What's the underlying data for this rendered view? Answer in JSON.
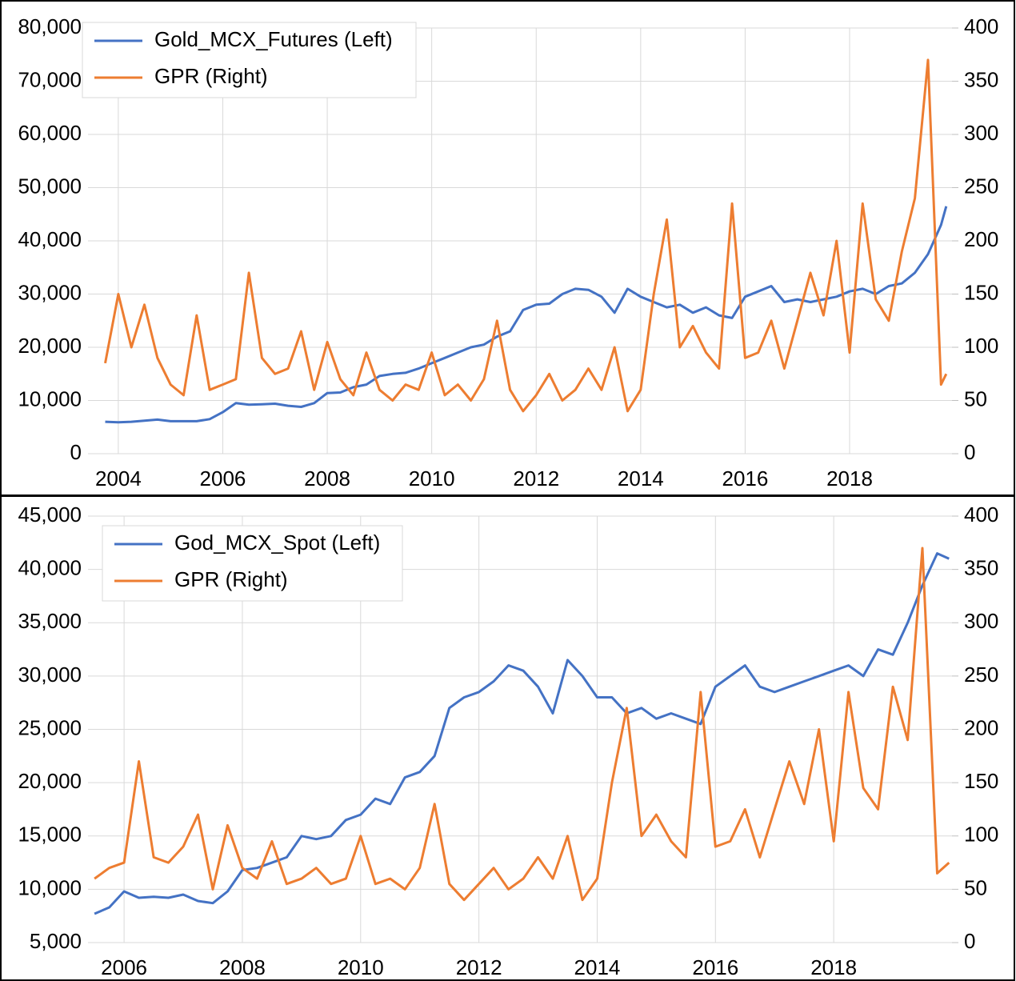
{
  "chart_data": [
    {
      "type": "line",
      "x": [
        2003.75,
        2004,
        2004.25,
        2004.5,
        2004.75,
        2005,
        2005.25,
        2005.5,
        2005.75,
        2006,
        2006.25,
        2006.5,
        2006.75,
        2007,
        2007.25,
        2007.5,
        2007.75,
        2008,
        2008.25,
        2008.5,
        2008.75,
        2009,
        2009.25,
        2009.5,
        2009.75,
        2010,
        2010.25,
        2010.5,
        2010.75,
        2011,
        2011.25,
        2011.5,
        2011.75,
        2012,
        2012.25,
        2012.5,
        2012.75,
        2013,
        2013.25,
        2013.5,
        2013.75,
        2014,
        2014.25,
        2014.5,
        2014.75,
        2015,
        2015.25,
        2015.5,
        2015.75,
        2016,
        2016.25,
        2016.5,
        2016.75,
        2017,
        2017.25,
        2017.5,
        2017.75,
        2018,
        2018.25,
        2018.5,
        2018.75,
        2019,
        2019.25,
        2019.5,
        2019.75,
        2019.85
      ],
      "series": [
        {
          "name": "Gold_MCX_Futures (Left)",
          "color": "#4472c4",
          "axis": "y",
          "values": [
            6000,
            5900,
            6000,
            6200,
            6400,
            6100,
            6100,
            6100,
            6500,
            7800,
            9500,
            9200,
            9300,
            9400,
            9000,
            8800,
            9500,
            11400,
            11500,
            12500,
            13000,
            14600,
            15000,
            15200,
            16000,
            17000,
            18000,
            19000,
            20000,
            20500,
            22000,
            23000,
            27000,
            28000,
            28200,
            30000,
            31000,
            30800,
            29500,
            26500,
            31000,
            29500,
            28500,
            27500,
            28000,
            26500,
            27500,
            26000,
            25500,
            29500,
            30500,
            31500,
            28500,
            29000,
            28500,
            29000,
            29500,
            30500,
            31000,
            30000,
            31500,
            32000,
            34000,
            37500,
            43000,
            46500
          ]
        },
        {
          "name": "GPR (Right)",
          "color": "#ed7d31",
          "axis": "y2",
          "values": [
            85,
            150,
            100,
            140,
            90,
            65,
            55,
            130,
            60,
            65,
            70,
            170,
            90,
            75,
            80,
            115,
            60,
            105,
            70,
            55,
            95,
            60,
            50,
            65,
            60,
            95,
            55,
            65,
            50,
            70,
            125,
            60,
            40,
            55,
            75,
            50,
            60,
            80,
            60,
            100,
            40,
            60,
            150,
            220,
            100,
            120,
            95,
            80,
            235,
            90,
            95,
            125,
            80,
            125,
            170,
            130,
            200,
            95,
            235,
            145,
            125,
            190,
            240,
            370,
            65,
            75
          ]
        }
      ],
      "xlim": [
        2003.42,
        2019.96
      ],
      "xticks": [
        2004,
        2006,
        2008,
        2010,
        2012,
        2014,
        2016,
        2018
      ],
      "ylim": [
        0,
        80000
      ],
      "yticks": [
        0,
        {
          "value": 10000,
          "label": "10,000"
        },
        {
          "value": 20000,
          "label": "20,000"
        },
        {
          "value": 30000,
          "label": "30,000"
        },
        {
          "value": 40000,
          "label": "40,000"
        },
        {
          "value": 50000,
          "label": "50,000"
        },
        {
          "value": 60000,
          "label": "60,000"
        },
        {
          "value": 70000,
          "label": "70,000"
        },
        {
          "value": 80000,
          "label": "80,000"
        }
      ],
      "y2lim": [
        0,
        400
      ],
      "y2ticks": [
        0,
        50,
        100,
        150,
        200,
        250,
        300,
        350,
        400
      ],
      "grid": true,
      "legend": "upper left"
    },
    {
      "type": "line",
      "x": [
        2005.5,
        2005.75,
        2006,
        2006.25,
        2006.5,
        2006.75,
        2007,
        2007.25,
        2007.5,
        2007.75,
        2008,
        2008.25,
        2008.5,
        2008.75,
        2009,
        2009.25,
        2009.5,
        2009.75,
        2010,
        2010.25,
        2010.5,
        2010.75,
        2011,
        2011.25,
        2011.5,
        2011.75,
        2012,
        2012.25,
        2012.5,
        2012.75,
        2013,
        2013.25,
        2013.5,
        2013.75,
        2014,
        2014.25,
        2014.5,
        2014.75,
        2015,
        2015.25,
        2015.5,
        2015.75,
        2016,
        2016.25,
        2016.5,
        2016.75,
        2017,
        2017.25,
        2017.5,
        2017.75,
        2018,
        2018.25,
        2018.5,
        2018.75,
        2019,
        2019.25,
        2019.5,
        2019.75,
        2019.95
      ],
      "series": [
        {
          "name": "God_MCX_Spot (Left)",
          "color": "#4472c4",
          "axis": "y",
          "values": [
            7700,
            8300,
            9800,
            9200,
            9300,
            9200,
            9500,
            8900,
            8700,
            9800,
            11800,
            12000,
            12500,
            13000,
            15000,
            14700,
            15000,
            16500,
            17000,
            18500,
            18000,
            20500,
            21000,
            22500,
            27000,
            28000,
            28500,
            29500,
            31000,
            30500,
            29000,
            26500,
            31500,
            30000,
            28000,
            28000,
            26500,
            27000,
            26000,
            26500,
            26000,
            25500,
            29000,
            30000,
            31000,
            29000,
            28500,
            29000,
            29500,
            30000,
            30500,
            31000,
            30000,
            32500,
            32000,
            35000,
            38500,
            41500,
            41000
          ]
        },
        {
          "name": "GPR (Right)",
          "color": "#ed7d31",
          "axis": "y2",
          "values": [
            60,
            70,
            75,
            170,
            80,
            75,
            90,
            120,
            50,
            110,
            70,
            60,
            95,
            55,
            60,
            70,
            55,
            60,
            100,
            55,
            60,
            50,
            70,
            130,
            55,
            40,
            55,
            70,
            50,
            60,
            80,
            60,
            100,
            40,
            60,
            150,
            220,
            100,
            120,
            95,
            80,
            235,
            90,
            95,
            125,
            80,
            125,
            170,
            130,
            200,
            95,
            235,
            145,
            125,
            240,
            190,
            370,
            65,
            75
          ]
        }
      ],
      "xlim": [
        2005.39,
        2020.0
      ],
      "xticks": [
        2006,
        2008,
        2010,
        2012,
        2014,
        2016,
        2018
      ],
      "ylim": [
        5000,
        45000
      ],
      "yticks": [
        {
          "value": 5000,
          "label": "5,000"
        },
        {
          "value": 10000,
          "label": "10,000"
        },
        {
          "value": 15000,
          "label": "15,000"
        },
        {
          "value": 20000,
          "label": "20,000"
        },
        {
          "value": 25000,
          "label": "25,000"
        },
        {
          "value": 30000,
          "label": "30,000"
        },
        {
          "value": 35000,
          "label": "35,000"
        },
        {
          "value": 40000,
          "label": "40,000"
        },
        {
          "value": 45000,
          "label": "45,000"
        }
      ],
      "y2lim": [
        0,
        400
      ],
      "y2ticks": [
        0,
        50,
        100,
        150,
        200,
        250,
        300,
        350,
        400
      ],
      "grid": true,
      "legend": "upper left"
    }
  ]
}
